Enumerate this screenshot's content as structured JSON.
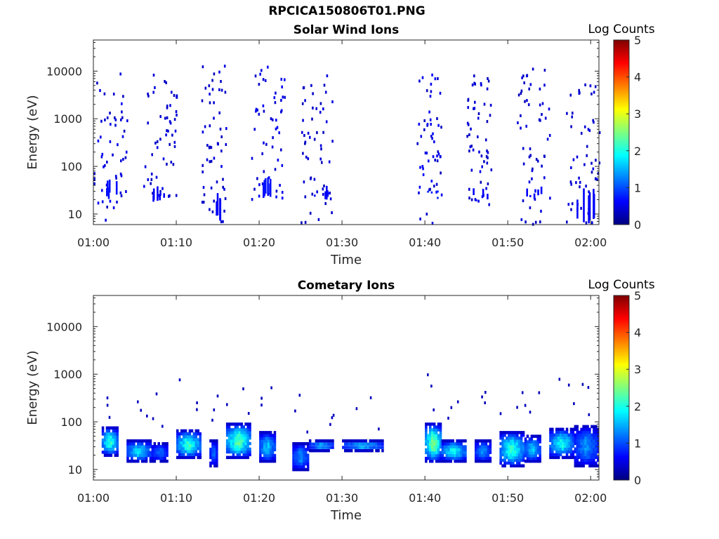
{
  "figure": {
    "title": "RPCICA150806T01.PNG"
  },
  "colorscale": {
    "stops": [
      "#00007f",
      "#0000ff",
      "#007fff",
      "#00ffff",
      "#7fff7f",
      "#ffff00",
      "#ff7f00",
      "#ff0000",
      "#7f0000"
    ]
  },
  "chart_data": [
    {
      "type": "heatmap",
      "title": "Solar Wind Ions",
      "xlabel": "Time",
      "ylabel": "Energy (eV)",
      "xlim": [
        "01:00",
        "02:01"
      ],
      "xticks": [
        "01:00",
        "01:10",
        "01:20",
        "01:30",
        "01:40",
        "01:50",
        "02:00"
      ],
      "ylim": [
        6,
        45000
      ],
      "yscale": "log",
      "yticks": [
        {
          "value": 10,
          "label": "10"
        },
        {
          "value": 100,
          "label": "100"
        },
        {
          "value": 1000,
          "label": "1000"
        },
        {
          "value": 10000,
          "label": "10000"
        }
      ],
      "colorbar": {
        "label": "Log Counts",
        "range": [
          0,
          5
        ],
        "ticks": [
          "0",
          "1",
          "2",
          "3",
          "4",
          "5"
        ]
      },
      "bursts": [
        {
          "start": "01:00",
          "end": "01:04",
          "low_counts": [
            0.3,
            0.6
          ],
          "high_energy": [
            7,
            9000
          ],
          "dense_band": [
            20,
            60
          ]
        },
        {
          "start": "01:06",
          "end": "01:10",
          "low_counts": [
            0.3,
            0.5
          ],
          "high_energy": [
            20,
            11000
          ],
          "dense_band": [
            18,
            40
          ]
        },
        {
          "start": "01:13",
          "end": "01:16",
          "low_counts": [
            0.3,
            0.5
          ],
          "high_energy": [
            6,
            17000
          ],
          "dense_band": [
            7,
            30
          ]
        },
        {
          "start": "01:19",
          "end": "01:23",
          "low_counts": [
            0.3,
            0.6
          ],
          "high_energy": [
            20,
            13000
          ],
          "dense_band": [
            20,
            60
          ]
        },
        {
          "start": "01:25",
          "end": "01:29",
          "low_counts": [
            0.3,
            0.5
          ],
          "high_energy": [
            6,
            11000
          ],
          "dense_band": [
            20,
            40
          ]
        },
        {
          "start": "01:39",
          "end": "01:42",
          "low_counts": [
            0.3,
            0.7
          ],
          "high_energy": [
            6,
            11000
          ],
          "dense_band": [
            25,
            40
          ]
        },
        {
          "start": "01:45",
          "end": "01:48",
          "low_counts": [
            0.3,
            0.5
          ],
          "high_energy": [
            15,
            10000
          ],
          "dense_band": [
            20,
            35
          ]
        },
        {
          "start": "01:51",
          "end": "01:55",
          "low_counts": [
            0.3,
            0.5
          ],
          "high_energy": [
            6,
            12000
          ],
          "dense_band": [
            20,
            40
          ]
        },
        {
          "start": "01:57",
          "end": "02:01",
          "low_counts": [
            0.3,
            0.5
          ],
          "high_energy": [
            6,
            7000
          ],
          "dense_band": [
            6,
            35
          ]
        }
      ]
    },
    {
      "type": "heatmap",
      "title": "Cometary Ions",
      "xlabel": "Time",
      "ylabel": "Energy (eV)",
      "xlim": [
        "01:00",
        "02:01"
      ],
      "xticks": [
        "01:00",
        "01:10",
        "01:20",
        "01:30",
        "01:40",
        "01:50",
        "02:00"
      ],
      "ylim": [
        6,
        45000
      ],
      "yscale": "log",
      "yticks": [
        {
          "value": 10,
          "label": "10"
        },
        {
          "value": 100,
          "label": "100"
        },
        {
          "value": 1000,
          "label": "1000"
        },
        {
          "value": 10000,
          "label": "10000"
        }
      ],
      "colorbar": {
        "label": "Log Counts",
        "range": [
          0,
          5
        ],
        "ticks": [
          "0",
          "1",
          "2",
          "3",
          "4",
          "5"
        ]
      },
      "bursts": [
        {
          "start": "01:01",
          "end": "01:03",
          "band": [
            20,
            75
          ],
          "peak_log_counts": 2.0
        },
        {
          "start": "01:04",
          "end": "01:07",
          "band": [
            15,
            40
          ],
          "peak_log_counts": 1.6
        },
        {
          "start": "01:07",
          "end": "01:09",
          "band": [
            15,
            35
          ],
          "peak_log_counts": 1.0
        },
        {
          "start": "01:10",
          "end": "01:13",
          "band": [
            18,
            65
          ],
          "peak_log_counts": 2.0
        },
        {
          "start": "01:14",
          "end": "01:15",
          "band": [
            12,
            40
          ],
          "peak_log_counts": 1.0
        },
        {
          "start": "01:16",
          "end": "01:19",
          "band": [
            18,
            90
          ],
          "peak_log_counts": 2.2
        },
        {
          "start": "01:20",
          "end": "01:22",
          "band": [
            15,
            60
          ],
          "peak_log_counts": 1.5
        },
        {
          "start": "01:24",
          "end": "01:26",
          "band": [
            10,
            35
          ],
          "peak_log_counts": 1.2
        },
        {
          "start": "01:26",
          "end": "01:29",
          "band": [
            25,
            40
          ],
          "peak_log_counts": 1.3
        },
        {
          "start": "01:30",
          "end": "01:35",
          "band": [
            25,
            40
          ],
          "peak_log_counts": 1.4
        },
        {
          "start": "01:40",
          "end": "01:42",
          "band": [
            15,
            90
          ],
          "peak_log_counts": 2.4
        },
        {
          "start": "01:42",
          "end": "01:45",
          "band": [
            15,
            40
          ],
          "peak_log_counts": 1.8
        },
        {
          "start": "01:46",
          "end": "01:48",
          "band": [
            15,
            40
          ],
          "peak_log_counts": 1.2
        },
        {
          "start": "01:49",
          "end": "01:52",
          "band": [
            12,
            60
          ],
          "peak_log_counts": 2.0
        },
        {
          "start": "01:52",
          "end": "01:54",
          "band": [
            15,
            50
          ],
          "peak_log_counts": 1.5
        },
        {
          "start": "01:55",
          "end": "01:58",
          "band": [
            18,
            70
          ],
          "peak_log_counts": 1.8
        },
        {
          "start": "01:58",
          "end": "02:01",
          "band": [
            12,
            80
          ],
          "peak_log_counts": 1.2
        }
      ]
    }
  ]
}
